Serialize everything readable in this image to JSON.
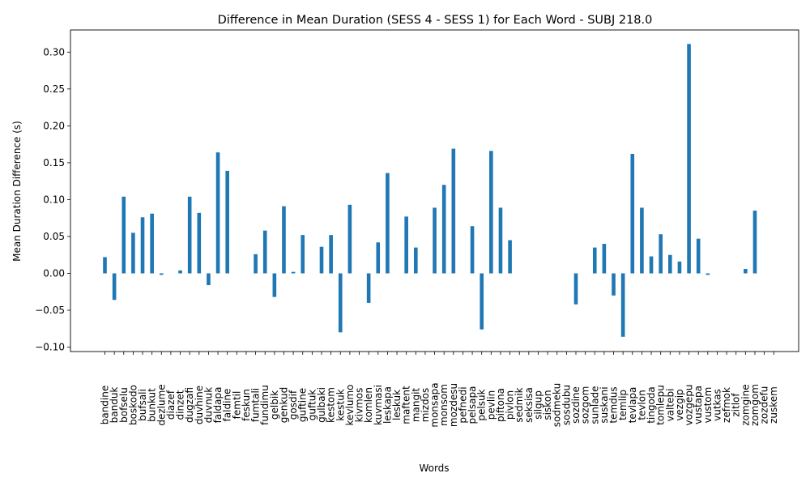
{
  "chart_data": {
    "type": "bar",
    "title": "Difference in Mean Duration (SESS 4 - SESS 1) for Each Word - SUBJ 218.0",
    "xlabel": "Words",
    "ylabel": "Mean Duration Difference (s)",
    "ylim": [
      -0.106,
      0.33
    ],
    "yticks": [
      -0.1,
      -0.05,
      0.0,
      0.05,
      0.1,
      0.15,
      0.2,
      0.25,
      0.3
    ],
    "ytick_labels": [
      "−0.10",
      "−0.05",
      "0.00",
      "0.05",
      "0.10",
      "0.15",
      "0.20",
      "0.25",
      "0.30"
    ],
    "grid": false,
    "color": "#1f77b4",
    "categories": [
      "bandine",
      "banduk",
      "bofselu",
      "boskodo",
      "bufsali",
      "bunkut",
      "dezlume",
      "diazef",
      "dinzet",
      "dugzafi",
      "duvhine",
      "duvnuk",
      "faldapa",
      "faldine",
      "femtil",
      "feskun",
      "fumtali",
      "fundimu",
      "gelbik",
      "genkud",
      "gosdif",
      "guftine",
      "guftuk",
      "gulbaki",
      "kestom",
      "kestuk",
      "kevlumo",
      "kivmos",
      "komlen",
      "kuvmasi",
      "leskapa",
      "leskuk",
      "maftent",
      "mangit",
      "mizdos",
      "monsapa",
      "monsom",
      "mozdesu",
      "pefnedi",
      "pelsapa",
      "pelsuk",
      "pevlin",
      "piftona",
      "pivlon",
      "sedmik",
      "seksisa",
      "silgup",
      "siskon",
      "sodmeku",
      "sosdubu",
      "sozdine",
      "sozgom",
      "sunlade",
      "suskani",
      "temdus",
      "temlip",
      "tevlapa",
      "tevlon",
      "tingoda",
      "tomlepu",
      "valtebi",
      "vezgip",
      "vozgepu",
      "vustapa",
      "vustom",
      "vutkas",
      "zefmok",
      "zitlof",
      "zomgine",
      "zomgom",
      "zozdefu",
      "zuskem"
    ],
    "values": [
      0.022,
      -0.036,
      0.104,
      0.055,
      0.076,
      0.081,
      -0.002,
      0,
      0.004,
      0.104,
      0.082,
      -0.016,
      0.164,
      0.139,
      0,
      0,
      0.026,
      0.058,
      -0.032,
      0.091,
      0.002,
      0.052,
      0,
      0.036,
      0.052,
      -0.08,
      0.093,
      0,
      -0.04,
      0.042,
      0.136,
      0,
      0.077,
      0.035,
      0,
      0.089,
      0.12,
      0.169,
      0,
      0.064,
      -0.076,
      0.166,
      0.089,
      0.045,
      0,
      0,
      0,
      0,
      0,
      0,
      -0.042,
      0,
      0.035,
      0.04,
      -0.03,
      -0.086,
      0.162,
      0.089,
      0.023,
      0.053,
      0.025,
      0.016,
      0.311,
      0.047,
      -0.002,
      0,
      0,
      0,
      0.006,
      0.085,
      0,
      0
    ]
  }
}
